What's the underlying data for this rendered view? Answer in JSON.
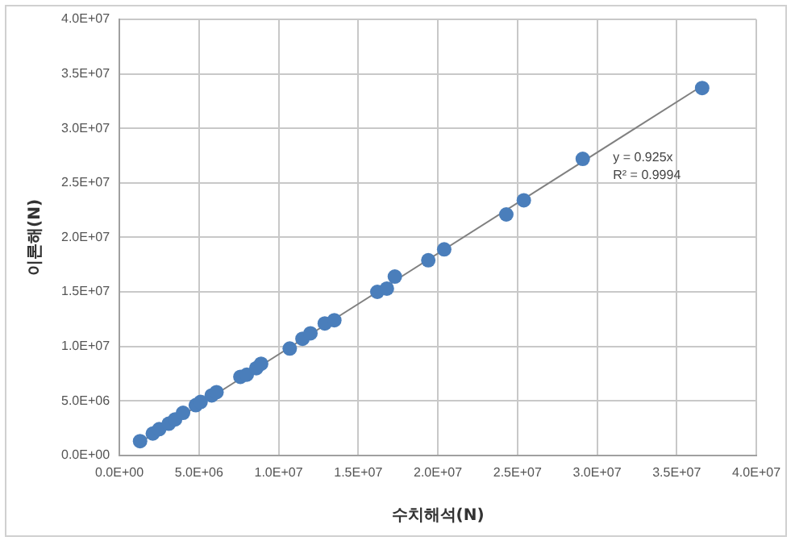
{
  "chart_data": {
    "type": "scatter",
    "xlabel": "수치해석(N)",
    "ylabel": "이론해(N)",
    "xlim": [
      0,
      40000000
    ],
    "ylim": [
      0,
      40000000
    ],
    "xticks": [
      {
        "value": 0,
        "label": "0.0E+00"
      },
      {
        "value": 5000000,
        "label": "5.0E+06"
      },
      {
        "value": 10000000,
        "label": "1.0E+07"
      },
      {
        "value": 15000000,
        "label": "1.5E+07"
      },
      {
        "value": 20000000,
        "label": "2.0E+07"
      },
      {
        "value": 25000000,
        "label": "2.5E+07"
      },
      {
        "value": 30000000,
        "label": "3.0E+07"
      },
      {
        "value": 35000000,
        "label": "3.5E+07"
      },
      {
        "value": 40000000,
        "label": "4.0E+07"
      }
    ],
    "yticks": [
      {
        "value": 0,
        "label": "0.0E+00"
      },
      {
        "value": 5000000,
        "label": "5.0E+06"
      },
      {
        "value": 10000000,
        "label": "1.0E+07"
      },
      {
        "value": 15000000,
        "label": "1.5E+07"
      },
      {
        "value": 20000000,
        "label": "2.0E+07"
      },
      {
        "value": 25000000,
        "label": "2.5E+07"
      },
      {
        "value": 30000000,
        "label": "3.0E+07"
      },
      {
        "value": 35000000,
        "label": "3.5E+07"
      },
      {
        "value": 40000000,
        "label": "4.0E+07"
      }
    ],
    "grid": true,
    "legend": false,
    "marker": "circle",
    "annotations": [
      "y = 0.925x",
      "R² = 0.9994"
    ],
    "series": [
      {
        "color": "#4a7ebb",
        "x": [
          1300000,
          2100000,
          2500000,
          3100000,
          3500000,
          4000000,
          4800000,
          5100000,
          5800000,
          6100000,
          7600000,
          8000000,
          8600000,
          8900000,
          10700000,
          11500000,
          12000000,
          12900000,
          13500000,
          16200000,
          16800000,
          17300000,
          19400000,
          20400000,
          24300000,
          25400000,
          29100000,
          36600000
        ],
        "values": [
          1300000,
          2000000,
          2400000,
          2900000,
          3300000,
          3900000,
          4600000,
          4900000,
          5500000,
          5800000,
          7200000,
          7400000,
          8000000,
          8400000,
          9800000,
          10700000,
          11200000,
          12100000,
          12400000,
          15000000,
          15300000,
          16400000,
          17900000,
          18900000,
          22100000,
          23400000,
          27200000,
          33700000
        ]
      },
      {
        "type": "line",
        "color": "#808080",
        "x": [
          1300000,
          36600000
        ],
        "values": [
          1200000,
          33900000
        ],
        "line_style": "solid",
        "marker": "none"
      }
    ]
  }
}
